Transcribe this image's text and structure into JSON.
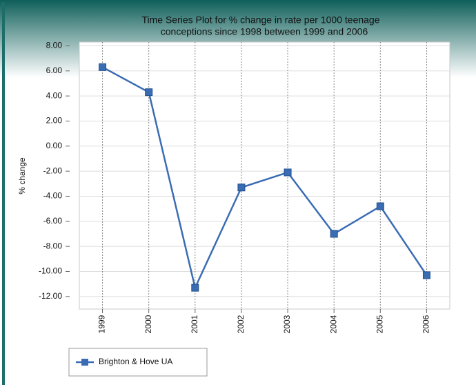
{
  "chart_data": {
    "type": "line",
    "title": [
      "Time Series Plot for % change in rate per 1000 teenage",
      "conceptions since 1998 between 1999 and 2006"
    ],
    "y_label": "% change",
    "categories": [
      "1999",
      "2000",
      "2001",
      "2002",
      "2003",
      "2004",
      "2005",
      "2006"
    ],
    "series": [
      {
        "name": "Brighton & Hove UA",
        "color": "#3a6cb4",
        "values": [
          6.3,
          4.3,
          -11.3,
          -3.3,
          -2.1,
          -7.0,
          -4.8,
          -10.3
        ]
      }
    ],
    "ylim": [
      -13,
      8.3
    ],
    "yticks": [
      {
        "value": 8,
        "label": "8.00"
      },
      {
        "value": 6,
        "label": "6.00"
      },
      {
        "value": 4,
        "label": "4.00"
      },
      {
        "value": 2,
        "label": "2.00"
      },
      {
        "value": 0,
        "label": "0.00"
      },
      {
        "value": -2,
        "label": "-2.00"
      },
      {
        "value": -4,
        "label": "-4.00"
      },
      {
        "value": -6,
        "label": "-6.00"
      },
      {
        "value": -8,
        "label": "-8.00"
      },
      {
        "value": -10,
        "label": "-10.00"
      },
      {
        "value": -12,
        "label": "-12.00"
      }
    ],
    "grid": true
  }
}
